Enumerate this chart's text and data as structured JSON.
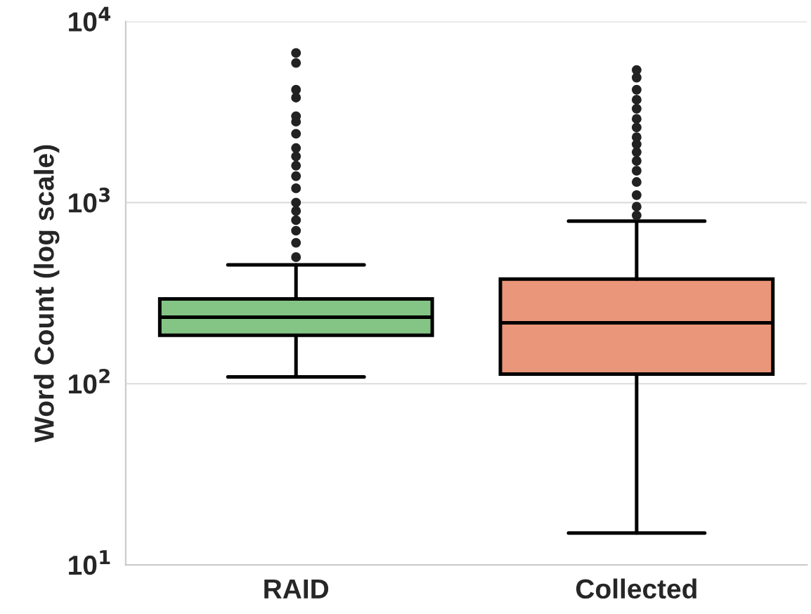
{
  "chart_data": {
    "type": "box",
    "ylabel": "Word Count (log scale)",
    "categories": [
      "RAID",
      "Collected"
    ],
    "colors": [
      "#84c585",
      "#e9967a"
    ],
    "boxes": [
      {
        "low": 109,
        "q1": 185,
        "median": 233,
        "q3": 294,
        "high": 453,
        "outliers": [
          500,
          600,
          700,
          800,
          900,
          1000,
          1200,
          1400,
          1600,
          1800,
          2000,
          2400,
          2800,
          3000,
          3800,
          4200,
          5900,
          6700
        ]
      },
      {
        "low": 15,
        "q1": 113,
        "median": 217,
        "q3": 378,
        "high": 791,
        "outliers": [
          850,
          950,
          1100,
          1300,
          1500,
          1700,
          1900,
          2100,
          2300,
          2600,
          2900,
          3300,
          3700,
          4200,
          4900,
          5400
        ]
      }
    ],
    "log": "y",
    "ylim": [
      10,
      10000
    ],
    "yticks": [
      {
        "value": 10,
        "label": "10$^{1}$"
      },
      {
        "value": 100,
        "label": "10$^{2}$"
      },
      {
        "value": 1000,
        "label": "10$^{3}$"
      },
      {
        "value": 10000,
        "label": "10$^{4}$"
      }
    ],
    "grid": "y"
  }
}
